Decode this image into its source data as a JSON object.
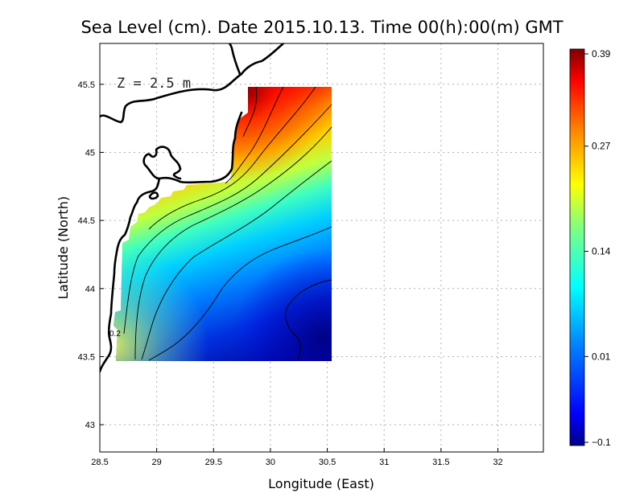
{
  "title": "Sea Level (cm). Date 2015.10.13. Time 00(h):00(m) GMT",
  "annotation": "Z = 2.5 m",
  "contour_label": "0.2",
  "chart_data": {
    "type": "heatmap",
    "title": "Sea Level (cm). Date 2015.10.13. Time 00(h):00(m) GMT",
    "xlabel": "Longitude (East)",
    "ylabel": "Latitude (North)",
    "xlim": [
      28.5,
      32.4
    ],
    "ylim": [
      42.8,
      45.8
    ],
    "x_ticks": [
      "28.5",
      "29",
      "29.5",
      "30",
      "30.5",
      "31",
      "31.5",
      "32"
    ],
    "y_ticks": [
      "43",
      "43.5",
      "44",
      "44.5",
      "45",
      "45.5"
    ],
    "grid": true,
    "data_region": {
      "lon": [
        28.65,
        30.52
      ],
      "lat": [
        43.48,
        45.48
      ]
    },
    "colorbar": {
      "min": -0.1,
      "max": 0.39,
      "tick_labels": [
        "0.39",
        "0.27",
        "0.14",
        "0.01",
        "-0.1"
      ],
      "colors": [
        "#00008b",
        "#0000ff",
        "#0080ff",
        "#00ffff",
        "#80ff80",
        "#ffff00",
        "#ff8000",
        "#ff0000",
        "#800000"
      ]
    },
    "field_values": {
      "northwest_corner": 0.39,
      "southeast_corner": -0.08,
      "southwest_edge": 0.2
    },
    "contour_label": "0.2",
    "annotation": "Z = 2.5 m"
  }
}
